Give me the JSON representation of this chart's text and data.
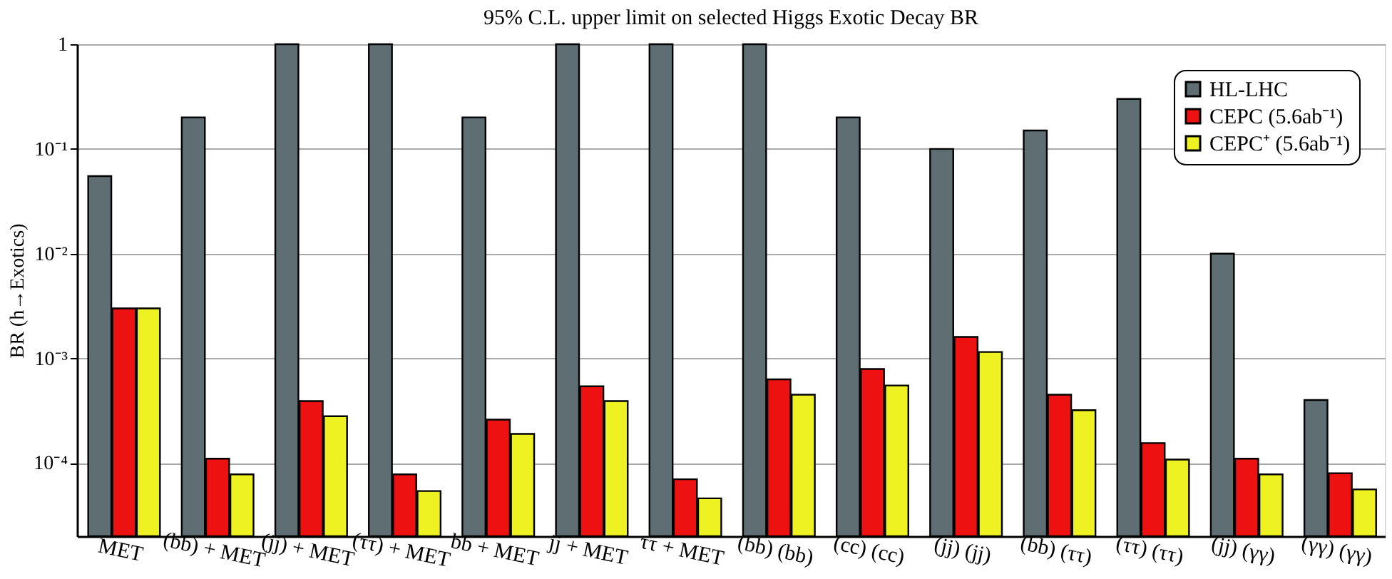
{
  "chart_data": {
    "type": "bar",
    "title": "95% C.L. upper limit on selected Higgs Exotic Decay BR",
    "ylabel": "BR (h→Exotics)",
    "categories": [
      "MET",
      "(bb) + MET",
      "(jj) + MET",
      "(ττ) + MET",
      "bb + MET",
      "jj + MET",
      "ττ + MET",
      "(bb) (bb)",
      "(cc) (cc)",
      "(jj) (jj)",
      "(bb) (ττ)",
      "(ττ) (ττ)",
      "(jj) (γγ)",
      "(γγ) (γγ)"
    ],
    "series": [
      {
        "name": "HL-LHC",
        "color": "#5f6e73",
        "values": [
          0.055,
          0.2,
          1,
          1,
          0.2,
          1,
          1,
          1,
          0.2,
          0.1,
          0.15,
          0.3,
          0.01,
          0.0004
        ]
      },
      {
        "name": "CEPC (5.6ab⁻¹)",
        "color": "#ee1111",
        "values": [
          0.003,
          0.00011,
          0.00039,
          7.8e-05,
          0.00026,
          0.00054,
          7e-05,
          0.00063,
          0.00079,
          0.0016,
          0.00045,
          0.000155,
          0.00011,
          8e-05
        ]
      },
      {
        "name": "CEPC⁺ (5.6ab⁻¹)",
        "color": "#eef222",
        "values": [
          0.003,
          7.8e-05,
          0.00028,
          5.4e-05,
          0.00019,
          0.00039,
          4.6e-05,
          0.00045,
          0.00055,
          0.00115,
          0.00032,
          0.000108,
          7.8e-05,
          5.6e-05
        ]
      }
    ],
    "log": true,
    "ylim": [
      2e-05,
      1
    ],
    "yticks": [
      {
        "value": 0.0001,
        "label": "10⁻⁴"
      },
      {
        "value": 0.001,
        "label": "10⁻³"
      },
      {
        "value": 0.01,
        "label": "10⁻²"
      },
      {
        "value": 0.1,
        "label": "10⁻¹"
      },
      1
    ],
    "grid": "y",
    "legend": "top right"
  }
}
